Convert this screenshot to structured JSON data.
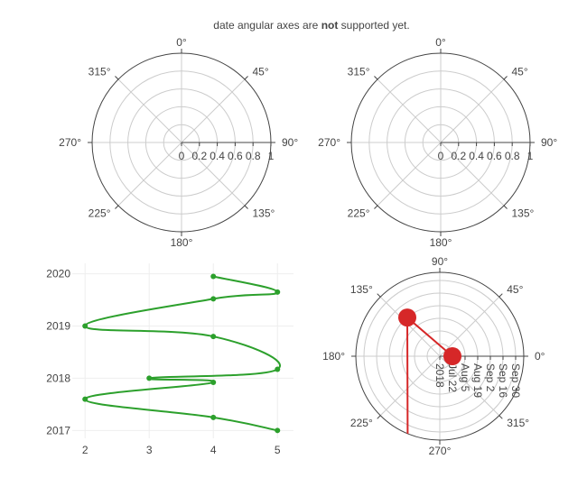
{
  "title_parts": {
    "pre": "date angular axes are ",
    "bold": "not",
    "post": " supported yet."
  },
  "colors": {
    "green": "#2ca02c",
    "red": "#d62728",
    "axis": "#444444",
    "grid": "#cccccc"
  },
  "chart_data": [
    {
      "type": "polar",
      "subplot": "top-left",
      "radial_range": [
        0,
        1
      ],
      "radial_ticks": [
        "0",
        "0.2",
        "0.4",
        "0.6",
        "0.8",
        "1"
      ],
      "angular_ticks": [
        "0°",
        "45°",
        "90°",
        "135°",
        "180°",
        "225°",
        "270°",
        "315°"
      ],
      "rotation_deg": 90,
      "direction": "clockwise",
      "series": []
    },
    {
      "type": "polar",
      "subplot": "top-right",
      "radial_range": [
        0,
        1
      ],
      "radial_ticks": [
        "0",
        "0.2",
        "0.4",
        "0.6",
        "0.8",
        "1"
      ],
      "angular_ticks": [
        "0°",
        "45°",
        "90°",
        "135°",
        "180°",
        "225°",
        "270°",
        "315°"
      ],
      "rotation_deg": 90,
      "direction": "clockwise",
      "series": []
    },
    {
      "type": "line",
      "subplot": "bottom-left",
      "line_shape": "spline",
      "x_ticks": [
        "2",
        "3",
        "4",
        "5"
      ],
      "y_ticks": [
        "2017",
        "2018",
        "2019",
        "2020"
      ],
      "xlim": [
        1.8,
        5.25
      ],
      "ylim": [
        2016.85,
        2020.2
      ],
      "series": [
        {
          "x": [
            5,
            4,
            2,
            4,
            3,
            5,
            4,
            2,
            4,
            5,
            4
          ],
          "y": [
            2017.0,
            2017.25,
            2017.6,
            2017.92,
            2018.0,
            2018.17,
            2018.8,
            2019.0,
            2019.52,
            2019.65,
            2019.95
          ]
        }
      ]
    },
    {
      "type": "polar",
      "subplot": "bottom-right",
      "radial_ticks": [
        "2018",
        "Jul 22",
        "Aug 5",
        "Aug 19",
        "Sep 2",
        "Sep 16",
        "Sep 30"
      ],
      "angular_ticks": [
        "0°",
        "45°",
        "90°",
        "135°",
        "180°",
        "225°",
        "270°",
        "315°"
      ],
      "rotation_deg": 0,
      "direction": "counterclockwise",
      "radial_tick_angle_deg": 0,
      "series": [
        {
          "theta": [
            0,
            130,
            250
          ],
          "r": [
            "Jul 22",
            "Sep 2",
            "2018-10-20"
          ]
        }
      ]
    }
  ]
}
